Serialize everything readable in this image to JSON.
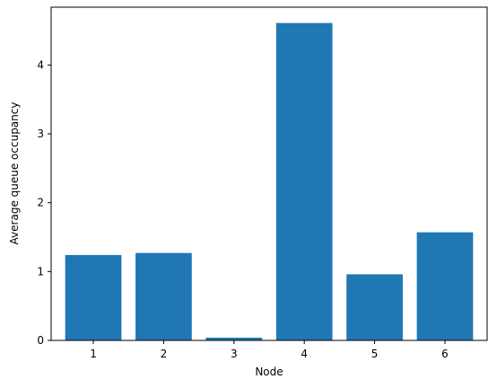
{
  "chart_data": {
    "type": "bar",
    "categories": [
      "1",
      "2",
      "3",
      "4",
      "5",
      "6"
    ],
    "values": [
      1.24,
      1.27,
      0.04,
      4.61,
      0.96,
      1.57
    ],
    "title": "",
    "xlabel": "Node",
    "ylabel": "Average queue occupancy",
    "ylim": [
      0,
      4.84
    ],
    "yticks": [
      "0",
      "1",
      "2",
      "3",
      "4"
    ],
    "grid": false,
    "bar_color": "#1f77b4"
  }
}
